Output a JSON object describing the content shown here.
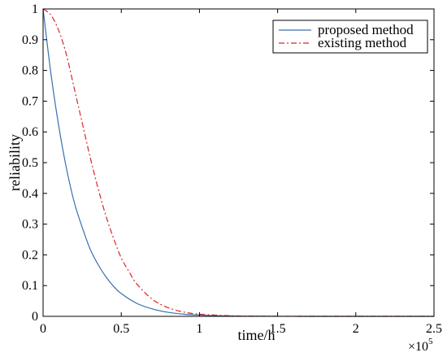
{
  "chart_data": {
    "type": "line",
    "xlabel": "time/h",
    "ylabel": "reliability",
    "x_multiplier_label": "×10",
    "x_multiplier_exponent": "5",
    "xlim": [
      0,
      2.5
    ],
    "ylim": [
      0,
      1
    ],
    "x_ticks": [
      0,
      0.5,
      1,
      1.5,
      2,
      2.5
    ],
    "x_tick_labels": [
      "0",
      "0.5",
      "1",
      "1.5",
      "2",
      "2.5"
    ],
    "y_ticks": [
      0,
      0.1,
      0.2,
      0.3,
      0.4,
      0.5,
      0.6,
      0.7,
      0.8,
      0.9,
      1
    ],
    "y_tick_labels": [
      "0",
      "0.1",
      "0.2",
      "0.3",
      "0.4",
      "0.5",
      "0.6",
      "0.7",
      "0.8",
      "0.9",
      "1"
    ],
    "grid": false,
    "legend_position": "top-right",
    "series": [
      {
        "name": "proposed method",
        "color": "#3a6fb0",
        "style": "solid",
        "x": [
          0,
          0.05,
          0.1,
          0.15,
          0.2,
          0.25,
          0.3,
          0.35,
          0.4,
          0.45,
          0.5,
          0.6,
          0.7,
          0.8,
          0.9,
          1.0,
          1.2,
          1.4,
          1.6,
          1.8,
          2.0,
          2.5
        ],
        "y": [
          1.0,
          0.79,
          0.62,
          0.48,
          0.37,
          0.29,
          0.22,
          0.17,
          0.13,
          0.098,
          0.074,
          0.042,
          0.024,
          0.013,
          0.007,
          0.004,
          0.001,
          0.0003,
          0.0001,
          0,
          0,
          0
        ]
      },
      {
        "name": "existing method",
        "color": "#d62728",
        "style": "dash-dot",
        "x": [
          0,
          0.05,
          0.1,
          0.15,
          0.2,
          0.25,
          0.3,
          0.35,
          0.4,
          0.45,
          0.5,
          0.55,
          0.6,
          0.7,
          0.8,
          0.9,
          1.0,
          1.2,
          1.4,
          1.6,
          1.8,
          2.0,
          2.5
        ],
        "y": [
          1.0,
          0.98,
          0.93,
          0.85,
          0.74,
          0.63,
          0.52,
          0.42,
          0.33,
          0.255,
          0.19,
          0.145,
          0.105,
          0.055,
          0.028,
          0.014,
          0.007,
          0.002,
          0.0005,
          0.0001,
          0,
          0,
          0
        ]
      }
    ]
  }
}
